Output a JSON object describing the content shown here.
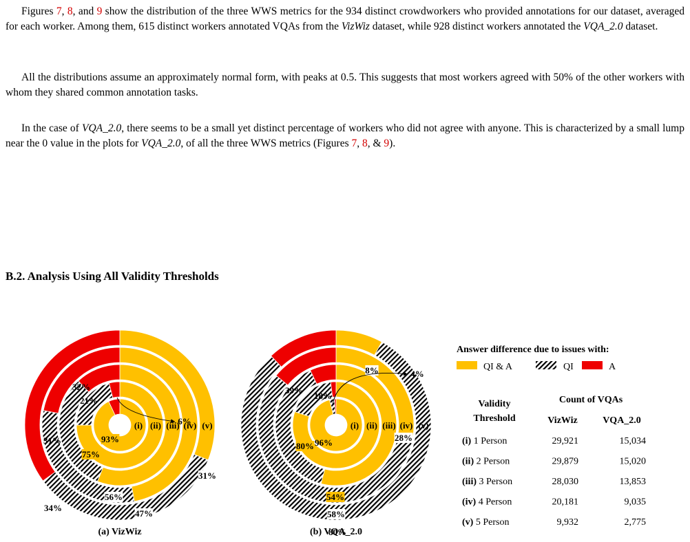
{
  "paragraphs": [
    {
      "intro": "Figures ",
      "ref1": "7",
      "sep1": ", ",
      "ref2": "8",
      "sep2": ", and ",
      "ref3": "9",
      "body": " show the distribution of the three WWS metrics for the 934 distinct crowdworkers who provided annotations for our dataset, averaged for each worker. Among them, 615 distinct workers annotated VQAs from the ",
      "em1": "VizWiz",
      "mid": " dataset, while 928 distinct workers annotated the ",
      "em2": "VQA_2.0",
      "end": " dataset."
    },
    {
      "text": "All the distributions assume an approximately normal form, with peaks at 0.5. This suggests that most workers agreed with 50% of the other workers with whom they shared common annotation tasks."
    },
    {
      "intro": "In the case of ",
      "em1": "VQA_2.0",
      "mid": ", there seems to be a small yet distinct percentage of workers who did not agree with anyone. This is characterized by a small lump near the 0 value in the plots for ",
      "em2": "VQA_2.0",
      "mid2": ", of all the three WWS metrics (Figures ",
      "ref1": "7",
      "sep1": ", ",
      "ref2": "8",
      "sep2": ", & ",
      "ref3": "9",
      "end": ")."
    }
  ],
  "section_heading": "B.2. Analysis Using All Validity Thresholds",
  "colors": {
    "qi_and_a": "#ffc000",
    "a": "#ee0000",
    "ref": "#d40000"
  },
  "chart_data": [
    {
      "type": "pie",
      "subtype": "concentric-rings",
      "caption": "(a) VizWiz",
      "ring_labels": [
        "(i)",
        "(ii)",
        "(iii)",
        "(iv)",
        "(v)"
      ],
      "series_order": [
        "QI & A",
        "QI",
        "A"
      ],
      "rings": [
        {
          "ring": "(i)",
          "values": [
            93,
            0,
            7
          ]
        },
        {
          "ring": "(ii)",
          "values": [
            75,
            21,
            4
          ]
        },
        {
          "ring": "(iii)",
          "values": [
            56,
            32,
            12
          ]
        },
        {
          "ring": "(iv)",
          "values": [
            47,
            31,
            22
          ]
        },
        {
          "ring": "(v)",
          "values": [
            31,
            34,
            35
          ]
        }
      ],
      "labels": [
        "93%",
        "75%",
        "21%",
        "32%",
        "31%",
        "56%",
        "34%",
        "47%",
        "31%",
        "6%"
      ]
    },
    {
      "type": "pie",
      "subtype": "concentric-rings",
      "caption": "(b) VQA_2.0",
      "ring_labels": [
        "(i)",
        "(ii)",
        "(iii)",
        "(iv)",
        "(v)"
      ],
      "series_order": [
        "QI & A",
        "QI",
        "A"
      ],
      "rings": [
        {
          "ring": "(i)",
          "values": [
            96,
            3,
            1
          ]
        },
        {
          "ring": "(ii)",
          "values": [
            80,
            18,
            2
          ]
        },
        {
          "ring": "(iii)",
          "values": [
            54,
            39,
            7
          ]
        },
        {
          "ring": "(iv)",
          "values": [
            28,
            58,
            14
          ]
        },
        {
          "ring": "(v)",
          "values": [
            8,
            80,
            12
          ]
        }
      ],
      "labels": [
        "96%",
        "80%",
        "18%",
        "39%",
        "54%",
        "58%",
        "80%",
        "28%",
        "8%",
        "4%"
      ]
    }
  ],
  "legend": {
    "title": "Answer difference due to issues with:",
    "items": [
      "QI & A",
      "QI",
      "A"
    ]
  },
  "table": {
    "header_col1_line1": "Validity",
    "header_col1_line2": "Threshold",
    "header_group": "Count of VQAs",
    "header_col2": "VizWiz",
    "header_col3": "VQA_2.0",
    "rows": [
      {
        "id": "(i)",
        "label": " 1 Person",
        "vizwiz": "29,921",
        "vqa": "15,034"
      },
      {
        "id": "(ii)",
        "label": " 2 Person",
        "vizwiz": "29,879",
        "vqa": "15,020"
      },
      {
        "id": "(iii)",
        "label": " 3 Person",
        "vizwiz": "28,030",
        "vqa": "13,853"
      },
      {
        "id": "(iv)",
        "label": " 4 Person",
        "vizwiz": "20,181",
        "vqa": "9,035"
      },
      {
        "id": "(v)",
        "label": " 5 Person",
        "vizwiz": "9,932",
        "vqa": "2,775"
      }
    ]
  }
}
